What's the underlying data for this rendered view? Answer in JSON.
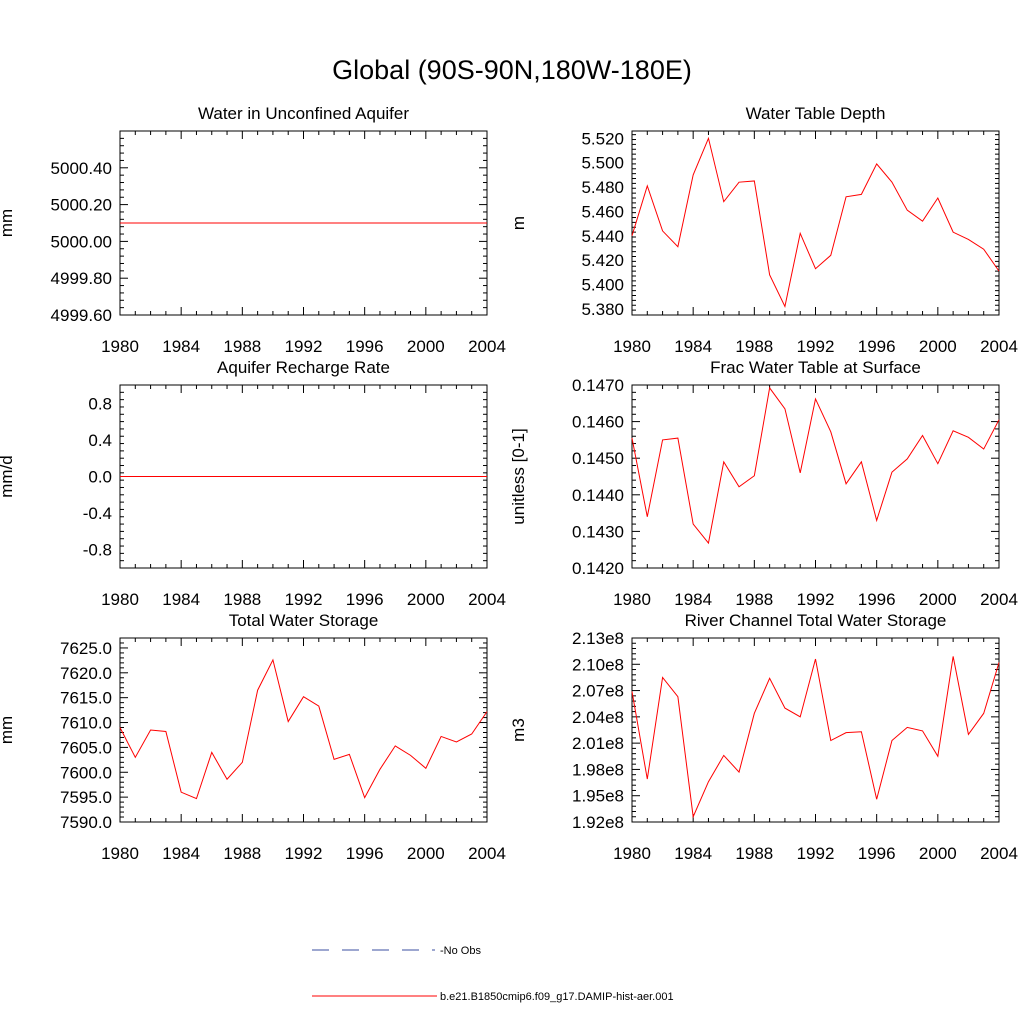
{
  "title": "Global (90S-90N,180W-180E)",
  "legend": [
    {
      "label": "No Obs",
      "color": "#3b4fa0",
      "style": "dashed"
    },
    {
      "label": "b.e21.B1850cmip6.f09_g17.DAMIP-hist-aer.001",
      "color": "#ff0000",
      "style": "solid"
    }
  ],
  "chart_data": [
    {
      "type": "line",
      "title": "Water in Unconfined Aquifer",
      "xlabel": "",
      "ylabel": "mm",
      "xlim": [
        1980,
        2004
      ],
      "ylim": [
        4999.6,
        5000.6
      ],
      "xticks": [
        1980,
        1984,
        1988,
        1992,
        1996,
        2000,
        2004
      ],
      "yticks": [
        4999.6,
        4999.8,
        5000.0,
        5000.2,
        5000.4
      ],
      "ytick_labels": [
        "4999.60",
        "4999.80",
        "5000.00",
        "5000.20",
        "5000.40"
      ],
      "series": [
        {
          "name": "b.e21.B1850cmip6.f09_g17.DAMIP-hist-aer.001",
          "x": [
            1980,
            1981,
            1982,
            1983,
            1984,
            1985,
            1986,
            1987,
            1988,
            1989,
            1990,
            1991,
            1992,
            1993,
            1994,
            1995,
            1996,
            1997,
            1998,
            1999,
            2000,
            2001,
            2002,
            2003,
            2004
          ],
          "values": [
            5000.1,
            5000.1,
            5000.1,
            5000.1,
            5000.1,
            5000.1,
            5000.1,
            5000.1,
            5000.1,
            5000.1,
            5000.1,
            5000.1,
            5000.1,
            5000.1,
            5000.1,
            5000.1,
            5000.1,
            5000.1,
            5000.1,
            5000.1,
            5000.1,
            5000.1,
            5000.1,
            5000.1,
            5000.1
          ]
        }
      ]
    },
    {
      "type": "line",
      "title": "Water Table Depth",
      "xlabel": "",
      "ylabel": "m",
      "xlim": [
        1980,
        2004
      ],
      "ylim": [
        5.375,
        5.526
      ],
      "xticks": [
        1980,
        1984,
        1988,
        1992,
        1996,
        2000,
        2004
      ],
      "yticks": [
        5.38,
        5.4,
        5.42,
        5.44,
        5.46,
        5.48,
        5.5,
        5.52
      ],
      "ytick_labels": [
        "5.380",
        "5.400",
        "5.420",
        "5.440",
        "5.460",
        "5.480",
        "5.500",
        "5.520"
      ],
      "series": [
        {
          "name": "b.e21.B1850cmip6.f09_g17.DAMIP-hist-aer.001",
          "x": [
            1980,
            1981,
            1982,
            1983,
            1984,
            1985,
            1986,
            1987,
            1988,
            1989,
            1990,
            1991,
            1992,
            1993,
            1994,
            1995,
            1996,
            1997,
            1998,
            1999,
            2000,
            2001,
            2002,
            2003,
            2004
          ],
          "values": [
            5.44,
            5.481,
            5.444,
            5.431,
            5.49,
            5.52,
            5.468,
            5.484,
            5.485,
            5.408,
            5.382,
            5.442,
            5.413,
            5.424,
            5.472,
            5.474,
            5.499,
            5.484,
            5.461,
            5.452,
            5.471,
            5.443,
            5.437,
            5.429,
            5.411
          ]
        }
      ]
    },
    {
      "type": "line",
      "title": "Aquifer Recharge Rate",
      "xlabel": "",
      "ylabel": "mm/d",
      "xlim": [
        1980,
        2004
      ],
      "ylim": [
        -1.0,
        1.0
      ],
      "xticks": [
        1980,
        1984,
        1988,
        1992,
        1996,
        2000,
        2004
      ],
      "yticks": [
        -0.8,
        -0.4,
        0.0,
        0.4,
        0.8
      ],
      "ytick_labels": [
        "-0.8",
        "-0.4",
        "0.0",
        "0.4",
        "0.8"
      ],
      "series": [
        {
          "name": "b.e21.B1850cmip6.f09_g17.DAMIP-hist-aer.001",
          "x": [
            1980,
            1981,
            1982,
            1983,
            1984,
            1985,
            1986,
            1987,
            1988,
            1989,
            1990,
            1991,
            1992,
            1993,
            1994,
            1995,
            1996,
            1997,
            1998,
            1999,
            2000,
            2001,
            2002,
            2003,
            2004
          ],
          "values": [
            0,
            0,
            0,
            0,
            0,
            0,
            0,
            0,
            0,
            0,
            0,
            0,
            0,
            0,
            0,
            0,
            0,
            0,
            0,
            0,
            0,
            0,
            0,
            0,
            0
          ]
        }
      ]
    },
    {
      "type": "line",
      "title": "Frac Water Table at Surface",
      "xlabel": "",
      "ylabel": "unitless [0-1]",
      "xlim": [
        1980,
        2004
      ],
      "ylim": [
        0.142,
        0.147
      ],
      "xticks": [
        1980,
        1984,
        1988,
        1992,
        1996,
        2000,
        2004
      ],
      "yticks": [
        0.142,
        0.143,
        0.144,
        0.145,
        0.146,
        0.147
      ],
      "ytick_labels": [
        "0.1420",
        "0.1430",
        "0.1440",
        "0.1450",
        "0.1460",
        "0.1470"
      ],
      "series": [
        {
          "name": "b.e21.B1850cmip6.f09_g17.DAMIP-hist-aer.001",
          "x": [
            1980,
            1981,
            1982,
            1983,
            1984,
            1985,
            1986,
            1987,
            1988,
            1989,
            1990,
            1991,
            1992,
            1993,
            1994,
            1995,
            1996,
            1997,
            1998,
            1999,
            2000,
            2001,
            2002,
            2003,
            2004
          ],
          "values": [
            0.14555,
            0.1434,
            0.1455,
            0.14555,
            0.1432,
            0.14268,
            0.1449,
            0.14422,
            0.14452,
            0.14692,
            0.14635,
            0.1446,
            0.14662,
            0.14572,
            0.1443,
            0.1449,
            0.1433,
            0.14462,
            0.14498,
            0.14562,
            0.14485,
            0.14575,
            0.14557,
            0.14525,
            0.14605
          ]
        }
      ]
    },
    {
      "type": "line",
      "title": "Total Water Storage",
      "xlabel": "",
      "ylabel": "mm",
      "xlim": [
        1980,
        2004
      ],
      "ylim": [
        7590.0,
        7627.0
      ],
      "xticks": [
        1980,
        1984,
        1988,
        1992,
        1996,
        2000,
        2004
      ],
      "yticks": [
        7590,
        7595,
        7600,
        7605,
        7610,
        7615,
        7620,
        7625
      ],
      "ytick_labels": [
        "7590.0",
        "7595.0",
        "7600.0",
        "7605.0",
        "7610.0",
        "7615.0",
        "7620.0",
        "7625.0"
      ],
      "series": [
        {
          "name": "b.e21.B1850cmip6.f09_g17.DAMIP-hist-aer.001",
          "x": [
            1980,
            1981,
            1982,
            1983,
            1984,
            1985,
            1986,
            1987,
            1988,
            1989,
            1990,
            1991,
            1992,
            1993,
            1994,
            1995,
            1996,
            1997,
            1998,
            1999,
            2000,
            2001,
            2002,
            2003,
            2004
          ],
          "values": [
            7609.0,
            7603.0,
            7608.5,
            7608.2,
            7596.0,
            7594.7,
            7604.0,
            7598.6,
            7602.0,
            7616.5,
            7622.6,
            7610.2,
            7615.2,
            7613.3,
            7602.6,
            7603.6,
            7594.9,
            7600.6,
            7605.3,
            7603.4,
            7600.8,
            7607.2,
            7606.1,
            7607.7,
            7612.2
          ]
        }
      ]
    },
    {
      "type": "line",
      "title": "River Channel Total Water Storage",
      "xlabel": "",
      "ylabel": "m3",
      "xlim": [
        1980,
        2004
      ],
      "ylim": [
        192000000,
        213000000
      ],
      "xticks": [
        1980,
        1984,
        1988,
        1992,
        1996,
        2000,
        2004
      ],
      "yticks": [
        192000000,
        195000000,
        198000000,
        201000000,
        204000000,
        207000000,
        210000000,
        213000000
      ],
      "ytick_labels": [
        "1.92e8",
        "1.95e8",
        "1.98e8",
        "2.01e8",
        "2.04e8",
        "2.07e8",
        "2.10e8",
        "2.13e8"
      ],
      "series": [
        {
          "name": "b.e21.B1850cmip6.f09_g17.DAMIP-hist-aer.001",
          "x": [
            1980,
            1981,
            1982,
            1983,
            1984,
            1985,
            1986,
            1987,
            1988,
            1989,
            1990,
            1991,
            1992,
            1993,
            1994,
            1995,
            1996,
            1997,
            1998,
            1999,
            2000,
            2001,
            2002,
            2003,
            2004
          ],
          "values": [
            206900000,
            196900000,
            208500000,
            206300000,
            192600000,
            196600000,
            199600000,
            197700000,
            204400000,
            208400000,
            205000000,
            204000000,
            210600000,
            201300000,
            202200000,
            202300000,
            194600000,
            201300000,
            202800000,
            202400000,
            199500000,
            210900000,
            202000000,
            204400000,
            210200000
          ]
        }
      ]
    }
  ]
}
